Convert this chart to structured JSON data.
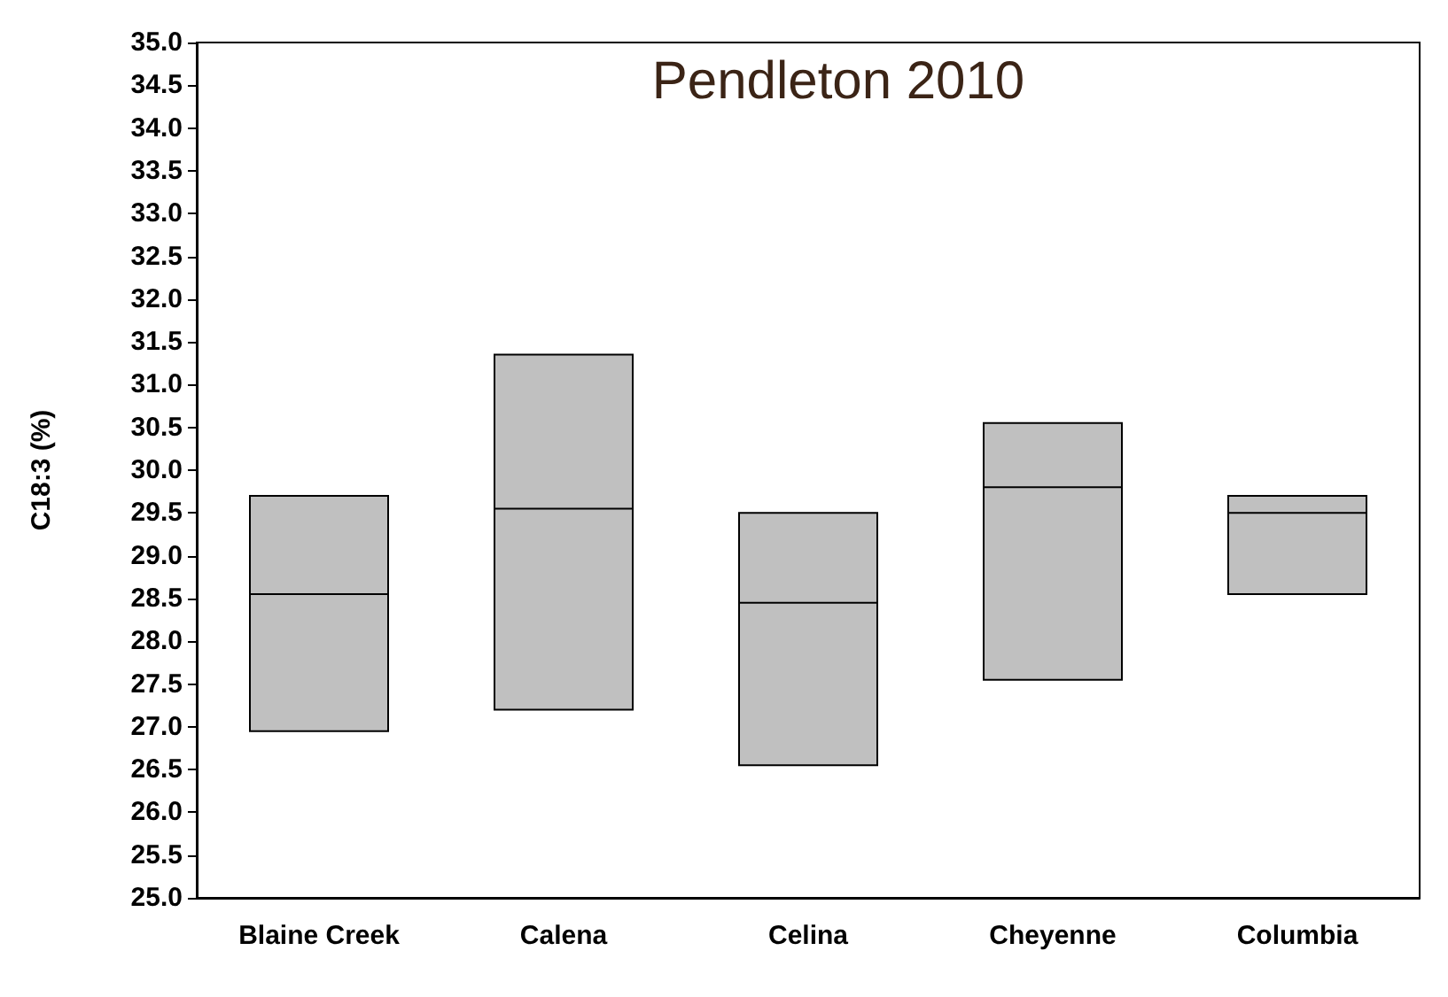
{
  "chart_data": {
    "type": "box",
    "title": "Pendleton 2010",
    "ylabel": "C18:3 (%)",
    "categories": [
      "Blaine Creek",
      "Calena",
      "Celina",
      "Cheyenne",
      "Columbia"
    ],
    "boxes": [
      {
        "low": 26.95,
        "q1": 26.95,
        "median": 28.55,
        "q3": 29.7,
        "high": 29.7
      },
      {
        "low": 27.2,
        "q1": 27.2,
        "median": 29.55,
        "q3": 31.35,
        "high": 31.35
      },
      {
        "low": 26.55,
        "q1": 26.55,
        "median": 28.45,
        "q3": 29.5,
        "high": 29.5
      },
      {
        "low": 27.55,
        "q1": 27.55,
        "median": 29.8,
        "q3": 30.55,
        "high": 30.55
      },
      {
        "low": 28.55,
        "q1": 28.55,
        "median": 29.5,
        "q3": 29.7,
        "high": 29.7
      }
    ],
    "color": "#c0c0c0",
    "ylim": [
      25,
      35
    ],
    "yticks": [
      {
        "value": 25,
        "label": "25.0"
      },
      {
        "value": 25.5,
        "label": "25.5"
      },
      {
        "value": 26,
        "label": "26.0"
      },
      {
        "value": 26.5,
        "label": "26.5"
      },
      {
        "value": 27,
        "label": "27.0"
      },
      {
        "value": 27.5,
        "label": "27.5"
      },
      {
        "value": 28,
        "label": "28.0"
      },
      {
        "value": 28.5,
        "label": "28.5"
      },
      {
        "value": 29,
        "label": "29.0"
      },
      {
        "value": 29.5,
        "label": "29.5"
      },
      {
        "value": 30,
        "label": "30.0"
      },
      {
        "value": 30.5,
        "label": "30.5"
      },
      {
        "value": 31,
        "label": "31.0"
      },
      {
        "value": 31.5,
        "label": "31.5"
      },
      {
        "value": 32,
        "label": "32.0"
      },
      {
        "value": 32.5,
        "label": "32.5"
      },
      {
        "value": 33,
        "label": "33.0"
      },
      {
        "value": 33.5,
        "label": "33.5"
      },
      {
        "value": 34,
        "label": "34.0"
      },
      {
        "value": 34.5,
        "label": "34.5"
      },
      {
        "value": 35,
        "label": "35.0"
      }
    ],
    "grid": false
  }
}
